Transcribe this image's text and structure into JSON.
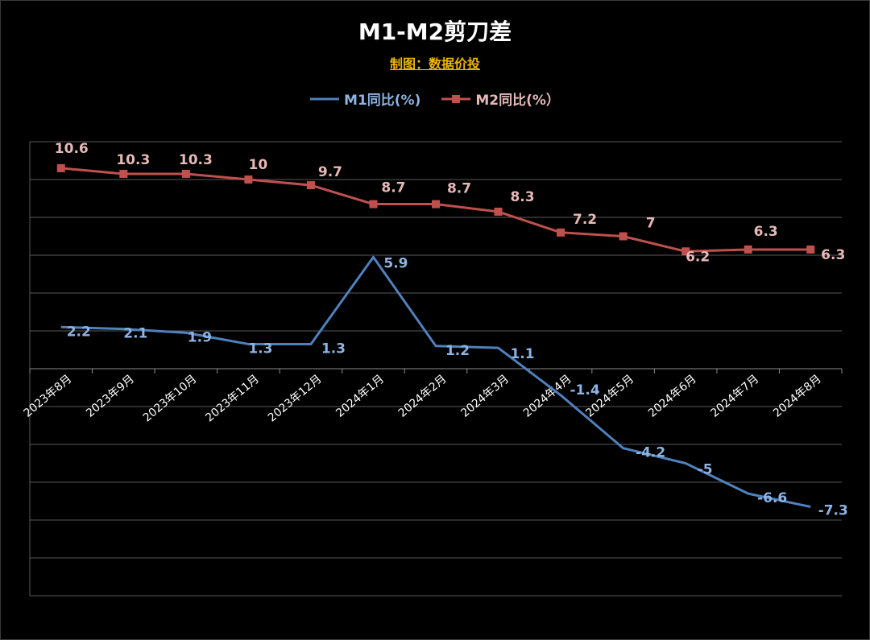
{
  "title": "M1-M2剪刀差",
  "credit": "制图：数据价投",
  "colors": {
    "background": "#000000",
    "grid": "#595959",
    "m1": "#4f81bd",
    "m2": "#c0504d",
    "m1_label": "#8db3e2",
    "m2_label": "#e6b9b8",
    "credit": "#f0b400"
  },
  "chart_data": {
    "type": "line",
    "title": "M1-M2剪刀差",
    "categories": [
      "2023年8月",
      "2023年9月",
      "2023年10月",
      "2023年11月",
      "2023年12月",
      "2024年1月",
      "2024年2月",
      "2024年3月",
      "2024年4月",
      "2024年5月",
      "2024年6月",
      "2024年7月",
      "2024年8月"
    ],
    "series": [
      {
        "name": "M1同比(%)",
        "marker": "none",
        "values": [
          2.2,
          2.1,
          1.9,
          1.3,
          1.3,
          5.9,
          1.2,
          1.1,
          -1.4,
          -4.2,
          -5,
          -6.6,
          -7.3
        ],
        "labels": [
          "2.2",
          "2.1",
          "1.9",
          "1.3",
          "1.3",
          "5.9",
          "1.2",
          "1.1",
          "-1.4",
          "-4.2",
          "-5",
          "-6.6",
          "-7.3"
        ]
      },
      {
        "name": "M2同比(%）",
        "marker": "square",
        "values": [
          10.6,
          10.3,
          10.3,
          10,
          9.7,
          8.7,
          8.7,
          8.3,
          7.2,
          7,
          6.2,
          6.3,
          6.3
        ],
        "labels": [
          "10.6",
          "10.3",
          "10.3",
          "10",
          "9.7",
          "8.7",
          "8.7",
          "8.3",
          "7.2",
          "7",
          "6.2",
          "6.3",
          "6.3"
        ]
      }
    ],
    "ylim": [
      -12,
      12
    ],
    "y_gridline_step": 2,
    "x_axis_at": 0,
    "grid": true,
    "y_tick_labels_visible": false,
    "legend_position": "top-center",
    "xlabel": "",
    "ylabel": ""
  }
}
